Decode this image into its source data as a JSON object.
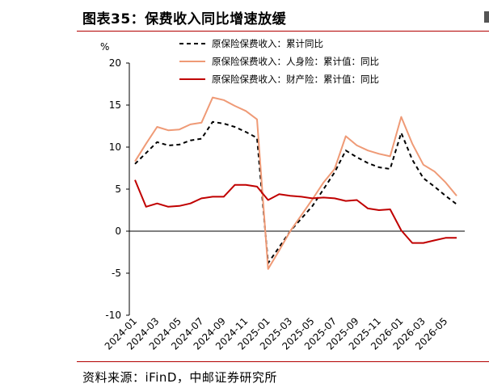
{
  "title": "图表35：保费收入同比增速放缓",
  "source": "资料来源：iFinD，中邮证券研究所",
  "chart_data": {
    "type": "line",
    "ylabel": "%",
    "ylim": [
      -10,
      20
    ],
    "yticks": [
      -10,
      -5,
      0,
      5,
      10,
      15,
      20
    ],
    "x": [
      "2024-01",
      "2024-02",
      "2024-03",
      "2024-04",
      "2024-05",
      "2024-06",
      "2024-07",
      "2024-08",
      "2024-09",
      "2024-10",
      "2024-11",
      "2024-12",
      "2025-01",
      "2025-02",
      "2025-03",
      "2025-04",
      "2025-05",
      "2025-06",
      "2025-07",
      "2025-08",
      "2025-09",
      "2025-10",
      "2025-11",
      "2025-12",
      "2026-01",
      "2026-02",
      "2026-03",
      "2026-04",
      "2026-05",
      "2026-06"
    ],
    "xtick_labels": [
      "2024-01",
      "2024-03",
      "2024-05",
      "2024-07",
      "2024-09",
      "2024-11",
      "2025-01",
      "2025-03",
      "2025-05",
      "2025-07",
      "2025-09",
      "2025-11",
      "2026-01",
      "2026-03",
      "2026-05"
    ],
    "legend_position": "top",
    "grid": false,
    "series": [
      {
        "name": "原保险保费收入：累计同比",
        "color": "#000000",
        "style": "dashed",
        "values": [
          8.0,
          9.3,
          10.6,
          10.2,
          10.3,
          10.8,
          11.0,
          13.0,
          12.8,
          12.4,
          11.8,
          11.1,
          -3.8,
          -1.9,
          0.0,
          1.5,
          3.0,
          5.0,
          7.0,
          9.6,
          8.8,
          8.1,
          7.6,
          7.4,
          11.7,
          8.5,
          6.3,
          5.3,
          4.2,
          3.2
        ]
      },
      {
        "name": "原保险保费收入：人身险：累计值：同比",
        "color": "#ef9a76",
        "style": "solid",
        "values": [
          8.3,
          10.4,
          12.4,
          12.0,
          12.1,
          12.7,
          12.9,
          15.9,
          15.6,
          14.9,
          14.3,
          13.3,
          -4.5,
          -2.3,
          0.0,
          1.9,
          3.8,
          5.8,
          7.4,
          11.3,
          10.2,
          9.6,
          9.2,
          8.9,
          13.6,
          10.4,
          7.9,
          7.1,
          5.8,
          4.2
        ]
      },
      {
        "name": "原保险保费收入：财产险：累计值：同比",
        "color": "#c00000",
        "style": "solid",
        "values": [
          6.1,
          2.9,
          3.3,
          2.9,
          3.0,
          3.3,
          3.9,
          4.1,
          4.1,
          5.5,
          5.5,
          5.3,
          3.7,
          4.4,
          4.2,
          4.1,
          3.9,
          4.0,
          3.9,
          3.6,
          3.7,
          2.7,
          2.5,
          2.6,
          0.1,
          -1.4,
          -1.4,
          -1.1,
          -0.8,
          -0.8
        ]
      }
    ]
  }
}
